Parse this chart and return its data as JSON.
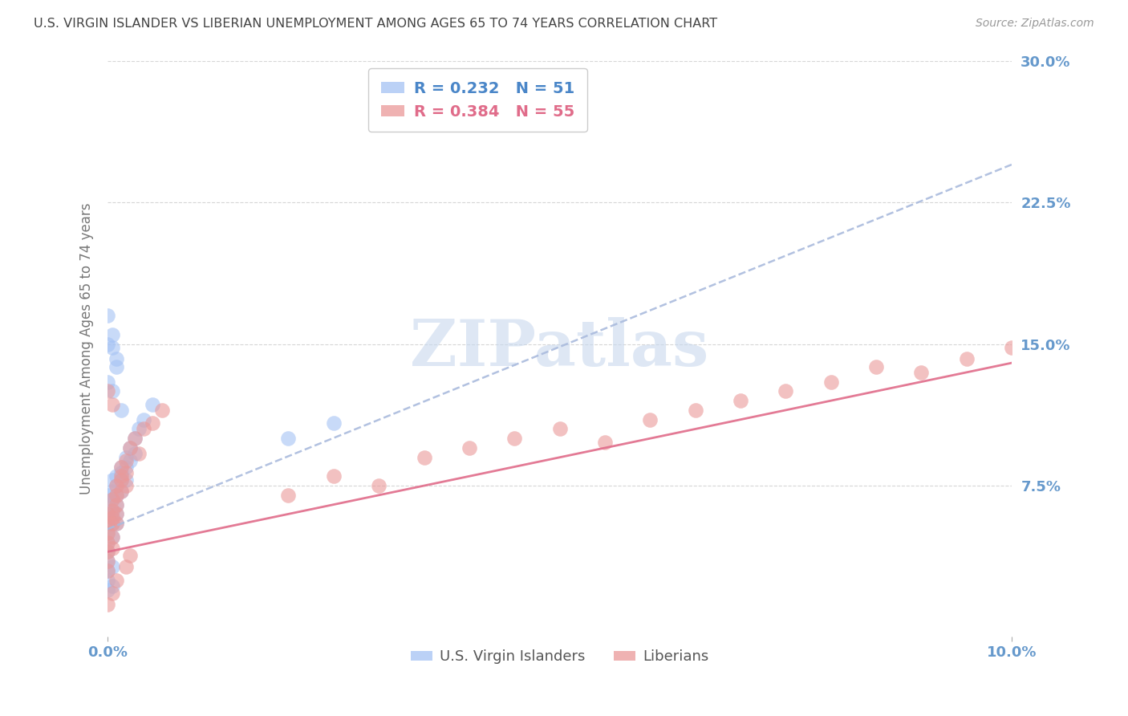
{
  "title": "U.S. VIRGIN ISLANDER VS LIBERIAN UNEMPLOYMENT AMONG AGES 65 TO 74 YEARS CORRELATION CHART",
  "source": "Source: ZipAtlas.com",
  "ylabel": "Unemployment Among Ages 65 to 74 years",
  "xlim": [
    0.0,
    0.1
  ],
  "ylim": [
    -0.005,
    0.3
  ],
  "yticks": [
    0.075,
    0.15,
    0.225,
    0.3
  ],
  "ytick_labels": [
    "7.5%",
    "15.0%",
    "22.5%",
    "30.0%"
  ],
  "xticks": [
    0.0,
    0.1
  ],
  "xtick_labels": [
    "0.0%",
    "10.0%"
  ],
  "blue_R": 0.232,
  "blue_N": 51,
  "pink_R": 0.384,
  "pink_N": 55,
  "blue_color": "#a4c2f4",
  "pink_color": "#ea9999",
  "blue_line_color": "#4a86c8",
  "pink_line_color": "#e06c8a",
  "axis_tick_color": "#6699cc",
  "watermark_color": "#c8d8ee",
  "blue_scatter_x": [
    0.0,
    0.0,
    0.0,
    0.0,
    0.0,
    0.0,
    0.0,
    0.0,
    0.0005,
    0.0005,
    0.0005,
    0.0005,
    0.0005,
    0.0005,
    0.0005,
    0.001,
    0.001,
    0.001,
    0.001,
    0.001,
    0.001,
    0.0015,
    0.0015,
    0.0015,
    0.0015,
    0.002,
    0.002,
    0.002,
    0.0025,
    0.0025,
    0.003,
    0.003,
    0.0035,
    0.004,
    0.005,
    0.0,
    0.0005,
    0.001,
    0.0015,
    0.0,
    0.0005,
    0.001,
    0.0,
    0.0005,
    0.02,
    0.025,
    0.0,
    0.0,
    0.0005,
    0.0,
    0.0005
  ],
  "blue_scatter_y": [
    0.05,
    0.055,
    0.06,
    0.065,
    0.07,
    0.045,
    0.04,
    0.035,
    0.058,
    0.062,
    0.068,
    0.072,
    0.078,
    0.055,
    0.048,
    0.07,
    0.075,
    0.08,
    0.065,
    0.06,
    0.055,
    0.082,
    0.085,
    0.078,
    0.072,
    0.09,
    0.085,
    0.078,
    0.095,
    0.088,
    0.1,
    0.092,
    0.105,
    0.11,
    0.118,
    0.13,
    0.125,
    0.138,
    0.115,
    0.15,
    0.148,
    0.142,
    0.165,
    0.155,
    0.1,
    0.108,
    0.025,
    0.03,
    0.032,
    0.02,
    0.022
  ],
  "pink_scatter_x": [
    0.0,
    0.0,
    0.0,
    0.0,
    0.0,
    0.0,
    0.0,
    0.0005,
    0.0005,
    0.0005,
    0.0005,
    0.0005,
    0.0005,
    0.001,
    0.001,
    0.001,
    0.001,
    0.001,
    0.0015,
    0.0015,
    0.0015,
    0.0015,
    0.002,
    0.002,
    0.002,
    0.0025,
    0.003,
    0.0035,
    0.004,
    0.005,
    0.006,
    0.0,
    0.0005,
    0.035,
    0.04,
    0.045,
    0.05,
    0.055,
    0.06,
    0.065,
    0.07,
    0.075,
    0.08,
    0.085,
    0.09,
    0.095,
    0.1,
    0.03,
    0.02,
    0.025,
    0.0,
    0.0005,
    0.001,
    0.002,
    0.0025
  ],
  "pink_scatter_y": [
    0.045,
    0.05,
    0.055,
    0.06,
    0.035,
    0.04,
    0.03,
    0.058,
    0.062,
    0.068,
    0.055,
    0.048,
    0.042,
    0.07,
    0.075,
    0.065,
    0.06,
    0.055,
    0.08,
    0.085,
    0.078,
    0.072,
    0.088,
    0.082,
    0.075,
    0.095,
    0.1,
    0.092,
    0.105,
    0.108,
    0.115,
    0.125,
    0.118,
    0.09,
    0.095,
    0.1,
    0.105,
    0.098,
    0.11,
    0.115,
    0.12,
    0.125,
    0.13,
    0.138,
    0.135,
    0.142,
    0.148,
    0.075,
    0.07,
    0.08,
    0.012,
    0.018,
    0.025,
    0.032,
    0.038
  ],
  "blue_trend_x": [
    0.0,
    0.1
  ],
  "blue_trend_y": [
    0.052,
    0.245
  ],
  "pink_trend_x": [
    0.0,
    0.1
  ],
  "pink_trend_y": [
    0.04,
    0.14
  ]
}
